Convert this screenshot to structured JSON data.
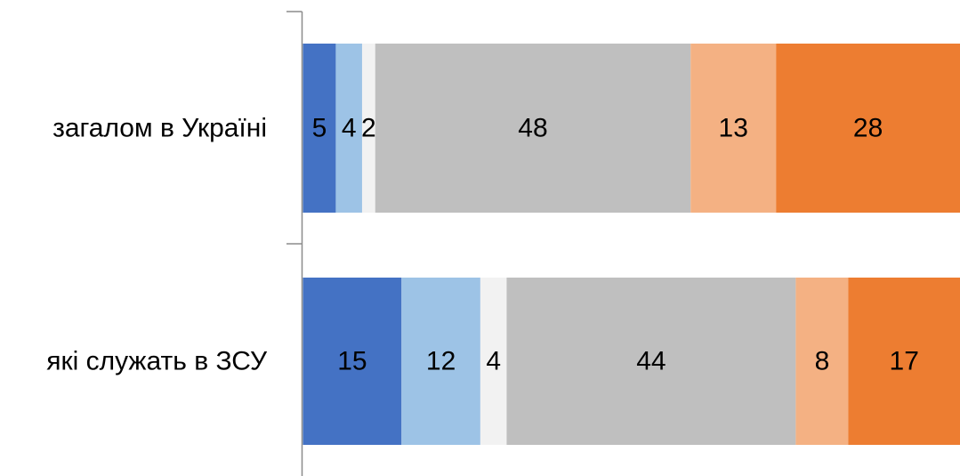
{
  "chart_data": {
    "type": "bar",
    "orientation": "horizontal",
    "stacked": true,
    "categories": [
      "загалом в Україні",
      "які служать в ЗСУ"
    ],
    "series": [
      {
        "color": "#4472c4",
        "values": [
          5,
          15
        ]
      },
      {
        "color": "#9dc3e6",
        "values": [
          4,
          12
        ]
      },
      {
        "color": "#f2f2f2",
        "values": [
          2,
          4
        ]
      },
      {
        "color": "#bfbfbf",
        "values": [
          48,
          44
        ]
      },
      {
        "color": "#f4b183",
        "values": [
          13,
          8
        ]
      },
      {
        "color": "#ed7d31",
        "values": [
          28,
          17
        ]
      }
    ],
    "legend": false,
    "grid": false
  }
}
